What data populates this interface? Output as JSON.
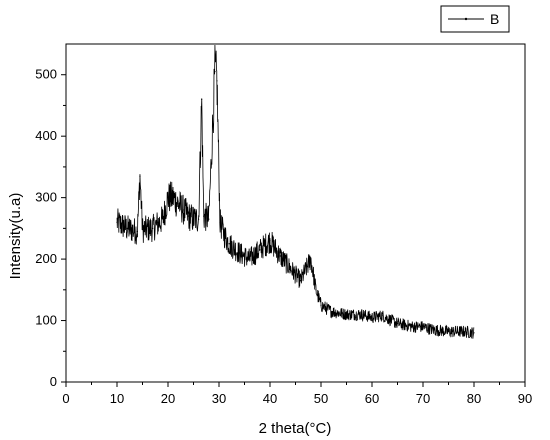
{
  "chart_data": {
    "type": "line",
    "xlabel": "2 theta(°C)",
    "ylabel": "Intensity(u.a)",
    "xlim": [
      0,
      90
    ],
    "ylim": [
      0,
      550
    ],
    "xticks": [
      "0",
      "10",
      "20",
      "30",
      "40",
      "50",
      "60",
      "70",
      "80",
      "90"
    ],
    "yticks": [
      "0",
      "100",
      "200",
      "300",
      "400",
      "500"
    ],
    "grid": false,
    "legend_position": "top-right",
    "series": [
      {
        "name": "B",
        "color": "#000000",
        "x": [
          10,
          12,
          14,
          14.5,
          15,
          17,
          19,
          20,
          21,
          22,
          23,
          24,
          25,
          26,
          26.6,
          27,
          28,
          29.2,
          29.6,
          30.2,
          31,
          32,
          34,
          36,
          38,
          40,
          42,
          44,
          46,
          48,
          49,
          50,
          52,
          55,
          58,
          60,
          62,
          65,
          68,
          70,
          72,
          75,
          78,
          80
        ],
        "y": [
          260,
          250,
          245,
          335,
          248,
          250,
          265,
          300,
          300,
          290,
          280,
          270,
          265,
          265,
          460,
          270,
          265,
          505,
          490,
          260,
          240,
          225,
          210,
          200,
          215,
          230,
          205,
          185,
          165,
          200,
          150,
          125,
          115,
          110,
          110,
          105,
          108,
          95,
          90,
          90,
          85,
          82,
          82,
          80
        ]
      }
    ]
  }
}
